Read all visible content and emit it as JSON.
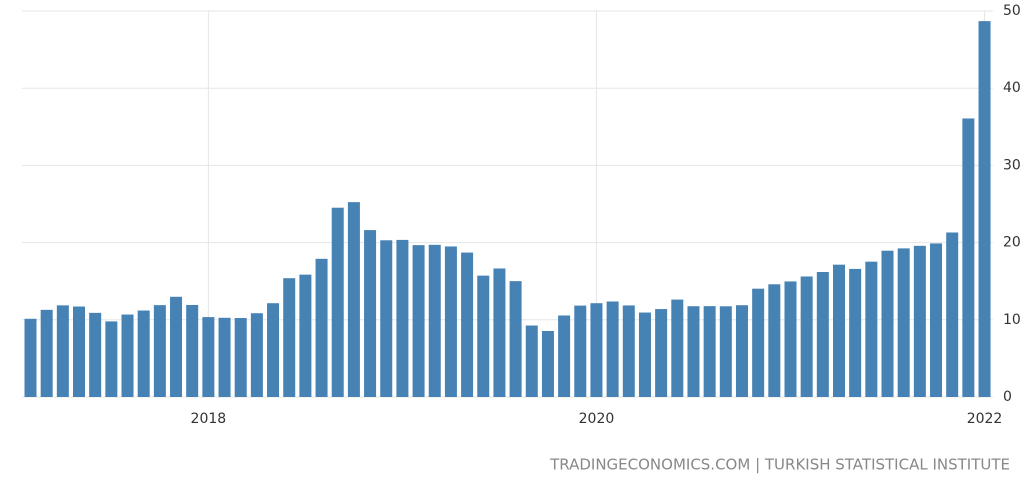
{
  "chart_data": {
    "type": "bar",
    "source": "TRADINGECONOMICS.COM | TURKISH STATISTICAL INSTITUTE",
    "categories": [
      null,
      null,
      null,
      null,
      null,
      null,
      null,
      null,
      null,
      null,
      null,
      "2018",
      null,
      null,
      null,
      null,
      null,
      null,
      null,
      null,
      null,
      null,
      null,
      null,
      null,
      null,
      null,
      null,
      null,
      null,
      null,
      null,
      null,
      null,
      null,
      "2020",
      null,
      null,
      null,
      null,
      null,
      null,
      null,
      null,
      null,
      null,
      null,
      null,
      null,
      null,
      null,
      null,
      null,
      null,
      null,
      null,
      null,
      null,
      null,
      "2022"
    ],
    "values": [
      10.13,
      11.29,
      11.87,
      11.72,
      10.9,
      9.79,
      10.68,
      11.2,
      11.9,
      12.98,
      11.92,
      10.35,
      10.26,
      10.23,
      10.85,
      12.15,
      15.39,
      15.85,
      17.9,
      24.52,
      25.24,
      21.62,
      20.3,
      20.35,
      19.67,
      19.71,
      19.5,
      18.71,
      15.72,
      16.65,
      15.01,
      9.26,
      8.55,
      10.56,
      11.84,
      12.15,
      12.37,
      11.86,
      10.94,
      11.39,
      12.62,
      11.76,
      11.77,
      11.75,
      11.89,
      14.03,
      14.6,
      14.97,
      15.61,
      16.19,
      17.14,
      16.59,
      17.53,
      18.95,
      19.25,
      19.58,
      19.89,
      21.31,
      36.08,
      48.69
    ],
    "color": "#4682b4",
    "ylim": [
      0,
      50
    ],
    "yticks": [
      0,
      10,
      20,
      30,
      40,
      50
    ],
    "grid": true
  }
}
